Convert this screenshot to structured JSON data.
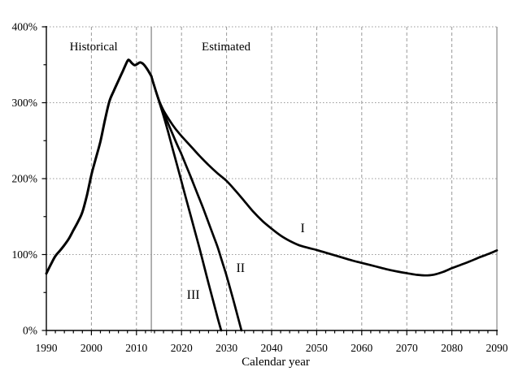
{
  "chart_data": {
    "type": "line",
    "xlabel": "Calendar year",
    "ylabel": "",
    "x_axis": {
      "min": 1990,
      "max": 2090,
      "major_tick_values": [
        1990,
        2000,
        2010,
        2020,
        2030,
        2040,
        2050,
        2060,
        2070,
        2080,
        2090
      ],
      "tick_labels": [
        "1990",
        "2000",
        "2010",
        "2020",
        "2030",
        "2040",
        "2050",
        "2060",
        "2070",
        "2080",
        "2090"
      ],
      "minor_tick_step": 2
    },
    "y_axis": {
      "min": 0,
      "max": 400,
      "major_tick_values": [
        0,
        100,
        200,
        300,
        400
      ],
      "tick_labels": [
        "0%",
        "100%",
        "200%",
        "300%",
        "400%"
      ],
      "minor_tick_step": 50
    },
    "grid": {
      "vertical_style": "dashed",
      "horizontal_style": "dotted",
      "shown": true
    },
    "divider": {
      "year": 2013.3,
      "meaning": "boundary between historical and estimated values"
    },
    "legend_position": "inline-labels",
    "series": [
      {
        "name": "Historical",
        "points": [
          [
            1990,
            75
          ],
          [
            1991,
            87
          ],
          [
            1992,
            98
          ],
          [
            1993,
            105
          ],
          [
            1994,
            112.5
          ],
          [
            1995,
            121
          ],
          [
            1996,
            132
          ],
          [
            1997,
            143
          ],
          [
            1998,
            156
          ],
          [
            1999,
            178
          ],
          [
            2000,
            205
          ],
          [
            2001,
            227
          ],
          [
            2002,
            249
          ],
          [
            2003,
            277
          ],
          [
            2004,
            302
          ],
          [
            2005,
            316
          ],
          [
            2006,
            329
          ],
          [
            2007,
            342
          ],
          [
            2008,
            355
          ],
          [
            2008.4,
            356
          ],
          [
            2009,
            352
          ],
          [
            2009.6,
            349.5
          ],
          [
            2010.2,
            351
          ],
          [
            2010.8,
            353
          ],
          [
            2011.5,
            351
          ],
          [
            2012.3,
            345
          ],
          [
            2013.3,
            335
          ]
        ]
      },
      {
        "name": "I",
        "points": [
          [
            2013.3,
            335
          ],
          [
            2014,
            321
          ],
          [
            2015,
            303
          ],
          [
            2016,
            290
          ],
          [
            2017,
            280
          ],
          [
            2018,
            271
          ],
          [
            2019,
            263
          ],
          [
            2020,
            256
          ],
          [
            2022,
            243
          ],
          [
            2024,
            230
          ],
          [
            2026,
            218
          ],
          [
            2028,
            207
          ],
          [
            2030,
            197
          ],
          [
            2032,
            184
          ],
          [
            2034,
            170
          ],
          [
            2036,
            156
          ],
          [
            2038,
            144
          ],
          [
            2040,
            134
          ],
          [
            2042,
            125
          ],
          [
            2044,
            118
          ],
          [
            2046,
            112.5
          ],
          [
            2048,
            109
          ],
          [
            2050,
            106
          ],
          [
            2052,
            102.5
          ],
          [
            2054,
            99
          ],
          [
            2056,
            95.5
          ],
          [
            2058,
            92
          ],
          [
            2060,
            89
          ],
          [
            2062,
            86
          ],
          [
            2064,
            83
          ],
          [
            2066,
            80
          ],
          [
            2068,
            77.5
          ],
          [
            2070,
            75.5
          ],
          [
            2072,
            73.5
          ],
          [
            2074,
            72.5
          ],
          [
            2076,
            73.5
          ],
          [
            2078,
            77
          ],
          [
            2080,
            82
          ],
          [
            2082,
            86.5
          ],
          [
            2084,
            91
          ],
          [
            2086,
            96
          ],
          [
            2088,
            100.5
          ],
          [
            2090,
            105.5
          ]
        ]
      },
      {
        "name": "II",
        "points": [
          [
            2013.3,
            335
          ],
          [
            2014,
            321
          ],
          [
            2015,
            303
          ],
          [
            2016,
            287
          ],
          [
            2017,
            273
          ],
          [
            2018,
            259
          ],
          [
            2019,
            245
          ],
          [
            2020,
            232
          ],
          [
            2021,
            217.5
          ],
          [
            2022,
            203
          ],
          [
            2023,
            188
          ],
          [
            2024,
            173
          ],
          [
            2025,
            158
          ],
          [
            2026,
            142
          ],
          [
            2027,
            126
          ],
          [
            2028,
            110
          ],
          [
            2029,
            91
          ],
          [
            2030,
            72
          ],
          [
            2031,
            51
          ],
          [
            2032,
            29
          ],
          [
            2033.3,
            0
          ]
        ]
      },
      {
        "name": "III",
        "points": [
          [
            2013.3,
            335
          ],
          [
            2014,
            321
          ],
          [
            2015,
            302
          ],
          [
            2016,
            283
          ],
          [
            2017,
            262
          ],
          [
            2018,
            240
          ],
          [
            2019,
            218
          ],
          [
            2020,
            196
          ],
          [
            2021,
            174
          ],
          [
            2022,
            152
          ],
          [
            2023,
            130
          ],
          [
            2024,
            108
          ],
          [
            2025,
            85
          ],
          [
            2026,
            62
          ],
          [
            2027,
            39.5
          ],
          [
            2028,
            17
          ],
          [
            2028.8,
            0
          ]
        ]
      }
    ],
    "annotations": [
      {
        "text": "Historical",
        "year": 2000.5,
        "pct": 369
      },
      {
        "text": "Estimated",
        "year": 2029.9,
        "pct": 369
      },
      {
        "text": "I",
        "year": 2046.9,
        "pct": 129.5
      },
      {
        "text": "II",
        "year": 2033.1,
        "pct": 77
      },
      {
        "text": "III",
        "year": 2022.6,
        "pct": 41.5
      }
    ],
    "colors": {
      "line": "#000000",
      "grid": "#999999",
      "divider": "#888888",
      "axis": "#000000",
      "text": "#000000",
      "background": "#ffffff"
    }
  }
}
